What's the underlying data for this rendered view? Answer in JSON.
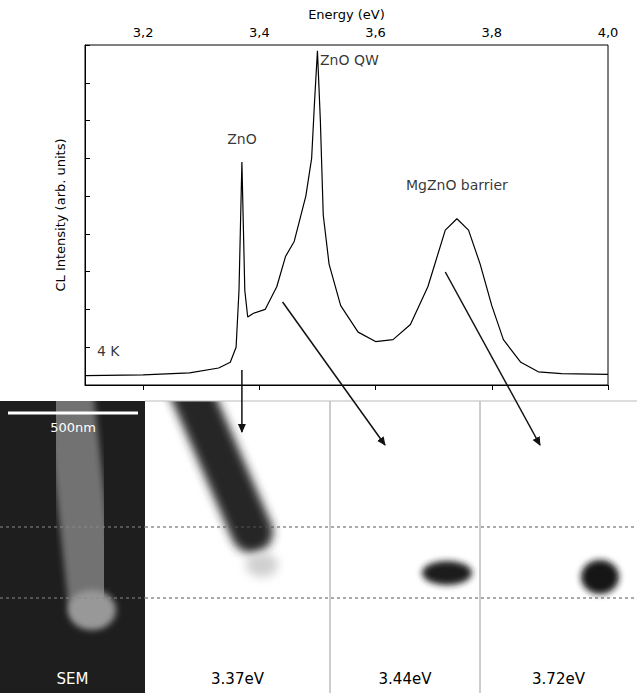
{
  "chart_data": {
    "type": "line",
    "x_label": "Energy (eV)",
    "y_label": "CL Intensity (arb. units)",
    "x": [
      3.1,
      3.2,
      3.28,
      3.33,
      3.35,
      3.36,
      3.365,
      3.37,
      3.375,
      3.38,
      3.39,
      3.41,
      3.43,
      3.445,
      3.46,
      3.48,
      3.49,
      3.495,
      3.5,
      3.505,
      3.51,
      3.52,
      3.54,
      3.57,
      3.6,
      3.63,
      3.66,
      3.69,
      3.72,
      3.74,
      3.76,
      3.78,
      3.8,
      3.82,
      3.85,
      3.88,
      3.92,
      4.0
    ],
    "values": [
      0.25,
      0.27,
      0.32,
      0.45,
      0.6,
      1.0,
      2.5,
      5.9,
      2.5,
      1.8,
      1.9,
      2.0,
      2.6,
      3.4,
      3.8,
      5.0,
      6.0,
      7.5,
      8.85,
      7.0,
      4.5,
      3.2,
      2.1,
      1.4,
      1.15,
      1.2,
      1.6,
      2.6,
      4.1,
      4.4,
      4.1,
      3.2,
      2.1,
      1.2,
      0.6,
      0.35,
      0.3,
      0.28
    ],
    "color": "#000000",
    "xlim": [
      3.1,
      4.0
    ],
    "xticks": [
      {
        "value": 3.2,
        "label": "3,2"
      },
      {
        "value": 3.4,
        "label": "3,4"
      },
      {
        "value": 3.6,
        "label": "3,6"
      },
      {
        "value": 3.8,
        "label": "3,8"
      },
      {
        "value": 4.0,
        "label": "4,0"
      }
    ],
    "ylim": [
      0,
      9
    ],
    "yticks": [
      0,
      1,
      2,
      3,
      4,
      5,
      6,
      7,
      8,
      9
    ],
    "grid": false,
    "tick_labels": "x",
    "annotations": [
      {
        "text": "ZnO",
        "x": 3.37,
        "y": 6.5
      },
      {
        "text": "ZnO QW",
        "x": 3.555,
        "y": 8.6
      },
      {
        "text": "MgZnO barrier",
        "x": 3.74,
        "y": 5.3
      },
      {
        "text": "4 K",
        "x": 3.14,
        "y": 0.9
      }
    ]
  },
  "image_panels": {
    "scale_bar": "500nm",
    "panels": [
      {
        "label": "SEM"
      },
      {
        "label": "3.37eV",
        "energy": 3.37
      },
      {
        "label": "3.44eV",
        "energy": 3.44
      },
      {
        "label": "3.72eV",
        "energy": 3.72
      }
    ]
  }
}
